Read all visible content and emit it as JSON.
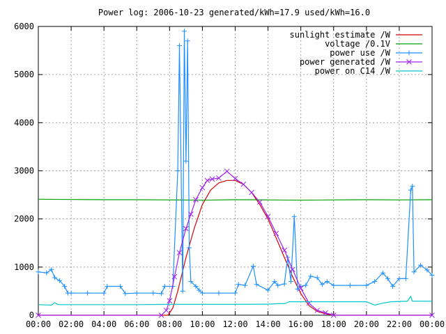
{
  "chart_data": {
    "type": "line",
    "title": "Power log: 2006-10-23 generated/kWh=17.9 used/kWh=16.0",
    "xlabel": "",
    "ylabel": "",
    "xlim": [
      0,
      24
    ],
    "ylim": [
      0,
      6000
    ],
    "grid": true,
    "legend_position": "top-right",
    "x_ticks": [
      {
        "value": 0,
        "label": "00:00"
      },
      {
        "value": 2,
        "label": "02:00"
      },
      {
        "value": 4,
        "label": "04:00"
      },
      {
        "value": 6,
        "label": "06:00"
      },
      {
        "value": 8,
        "label": "08:00"
      },
      {
        "value": 10,
        "label": "10:00"
      },
      {
        "value": 12,
        "label": "12:00"
      },
      {
        "value": 14,
        "label": "14:00"
      },
      {
        "value": 16,
        "label": "16:00"
      },
      {
        "value": 18,
        "label": "18:00"
      },
      {
        "value": 20,
        "label": "20:00"
      },
      {
        "value": 22,
        "label": "22:00"
      },
      {
        "value": 24,
        "label": "00:00"
      }
    ],
    "y_ticks": [
      {
        "value": 0,
        "label": "0"
      },
      {
        "value": 1000,
        "label": "1000"
      },
      {
        "value": 2000,
        "label": "2000"
      },
      {
        "value": 3000,
        "label": "3000"
      },
      {
        "value": 4000,
        "label": "4000"
      },
      {
        "value": 5000,
        "label": "5000"
      },
      {
        "value": 6000,
        "label": "6000"
      }
    ],
    "series": [
      {
        "name": "sunlight estimate /W",
        "color": "#d40000",
        "marker": "none",
        "points": [
          [
            0,
            0
          ],
          [
            7.9,
            0
          ],
          [
            8.2,
            150
          ],
          [
            8.5,
            500
          ],
          [
            9,
            1200
          ],
          [
            9.5,
            1800
          ],
          [
            10,
            2300
          ],
          [
            10.5,
            2600
          ],
          [
            11,
            2750
          ],
          [
            11.5,
            2800
          ],
          [
            12,
            2800
          ],
          [
            12.5,
            2720
          ],
          [
            13,
            2550
          ],
          [
            13.5,
            2300
          ],
          [
            14,
            2000
          ],
          [
            14.5,
            1600
          ],
          [
            15,
            1200
          ],
          [
            15.5,
            800
          ],
          [
            16,
            450
          ],
          [
            16.5,
            200
          ],
          [
            17,
            80
          ],
          [
            17.5,
            30
          ],
          [
            18,
            0
          ],
          [
            24,
            0
          ]
        ]
      },
      {
        "name": "voltage /0.1V",
        "color": "#00a000",
        "marker": "none",
        "points": [
          [
            0,
            2410
          ],
          [
            2,
            2405
          ],
          [
            4,
            2400
          ],
          [
            6,
            2400
          ],
          [
            8,
            2395
          ],
          [
            10,
            2390
          ],
          [
            12,
            2400
          ],
          [
            14,
            2395
          ],
          [
            16,
            2390
          ],
          [
            18,
            2395
          ],
          [
            20,
            2400
          ],
          [
            22,
            2395
          ],
          [
            24,
            2400
          ]
        ]
      },
      {
        "name": "power use /W",
        "color": "#1e90ff",
        "marker": "plus",
        "points": [
          [
            0,
            900
          ],
          [
            0.5,
            880
          ],
          [
            0.8,
            950
          ],
          [
            1,
            780
          ],
          [
            1.3,
            720
          ],
          [
            1.6,
            600
          ],
          [
            1.8,
            460
          ],
          [
            2,
            460
          ],
          [
            3,
            460
          ],
          [
            4,
            460
          ],
          [
            4.2,
            600
          ],
          [
            5,
            600
          ],
          [
            5.3,
            450
          ],
          [
            6,
            460
          ],
          [
            7,
            460
          ],
          [
            7.5,
            450
          ],
          [
            7.7,
            600
          ],
          [
            8.2,
            600
          ],
          [
            8.5,
            3000
          ],
          [
            8.6,
            5600
          ],
          [
            8.8,
            500
          ],
          [
            8.9,
            5900
          ],
          [
            9,
            3200
          ],
          [
            9.1,
            5700
          ],
          [
            9.2,
            1400
          ],
          [
            9.3,
            700
          ],
          [
            9.6,
            600
          ],
          [
            9.8,
            520
          ],
          [
            10,
            460
          ],
          [
            11,
            460
          ],
          [
            12,
            460
          ],
          [
            12.2,
            640
          ],
          [
            12.6,
            620
          ],
          [
            13.1,
            1020
          ],
          [
            13.3,
            640
          ],
          [
            14,
            520
          ],
          [
            14.4,
            700
          ],
          [
            14.6,
            620
          ],
          [
            15,
            650
          ],
          [
            15.2,
            1200
          ],
          [
            15.4,
            700
          ],
          [
            15.6,
            2050
          ],
          [
            15.8,
            540
          ],
          [
            16,
            600
          ],
          [
            16.3,
            620
          ],
          [
            16.6,
            810
          ],
          [
            17,
            780
          ],
          [
            17.3,
            640
          ],
          [
            17.6,
            700
          ],
          [
            18,
            620
          ],
          [
            19,
            620
          ],
          [
            20,
            620
          ],
          [
            20.5,
            700
          ],
          [
            21,
            880
          ],
          [
            21.3,
            760
          ],
          [
            21.6,
            600
          ],
          [
            22,
            760
          ],
          [
            22.4,
            760
          ],
          [
            22.7,
            2600
          ],
          [
            22.8,
            2680
          ],
          [
            22.9,
            900
          ],
          [
            23.3,
            1040
          ],
          [
            23.7,
            940
          ],
          [
            24,
            830
          ]
        ]
      },
      {
        "name": "power generated /W",
        "color": "#a020f0",
        "marker": "cross",
        "points": [
          [
            0,
            0
          ],
          [
            7.5,
            0
          ],
          [
            7.8,
            100
          ],
          [
            8,
            300
          ],
          [
            8.3,
            800
          ],
          [
            8.6,
            1300
          ],
          [
            9,
            1800
          ],
          [
            9.3,
            2100
          ],
          [
            9.6,
            2400
          ],
          [
            10,
            2650
          ],
          [
            10.3,
            2800
          ],
          [
            10.6,
            2830
          ],
          [
            11,
            2850
          ],
          [
            11.5,
            2990
          ],
          [
            12,
            2840
          ],
          [
            12.5,
            2720
          ],
          [
            13,
            2550
          ],
          [
            13.5,
            2350
          ],
          [
            14,
            2050
          ],
          [
            14.5,
            1700
          ],
          [
            15,
            1350
          ],
          [
            15.5,
            950
          ],
          [
            16,
            560
          ],
          [
            16.5,
            250
          ],
          [
            17,
            100
          ],
          [
            17.5,
            50
          ],
          [
            18,
            0
          ],
          [
            24,
            0
          ]
        ]
      },
      {
        "name": "power on C14 /W",
        "color": "#00c8c8",
        "marker": "none",
        "points": [
          [
            0,
            220
          ],
          [
            0.8,
            210
          ],
          [
            1,
            260
          ],
          [
            1.2,
            220
          ],
          [
            6,
            220
          ],
          [
            8,
            225
          ],
          [
            12,
            225
          ],
          [
            14,
            230
          ],
          [
            14.6,
            240
          ],
          [
            15,
            240
          ],
          [
            15.3,
            280
          ],
          [
            16,
            280
          ],
          [
            20,
            280
          ],
          [
            20.5,
            210
          ],
          [
            21,
            250
          ],
          [
            21.5,
            280
          ],
          [
            22.5,
            290
          ],
          [
            22.7,
            390
          ],
          [
            22.8,
            290
          ],
          [
            24,
            290
          ]
        ]
      }
    ]
  }
}
